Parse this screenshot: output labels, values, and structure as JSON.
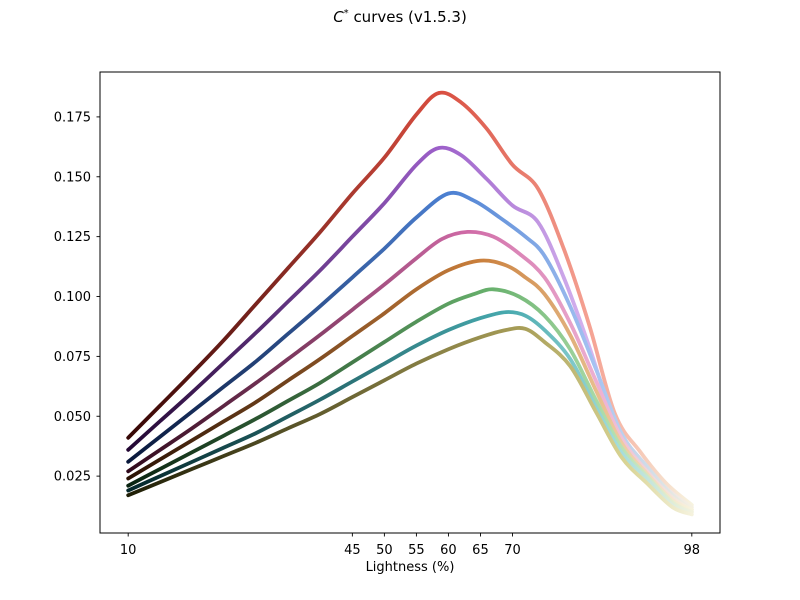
{
  "title": {
    "var": "C",
    "sup": "*",
    "rest": " curves (v1.5.3)"
  },
  "chart_data": {
    "type": "line",
    "title": "C* curves (v1.5.3)",
    "xlabel": "Lightness (%)",
    "ylabel": "",
    "xlim": [
      5.6,
      102.4
    ],
    "ylim": [
      0.00125,
      0.19375
    ],
    "x_ticks": [
      10,
      45,
      50,
      55,
      60,
      65,
      70,
      98
    ],
    "x_tick_labels": [
      "10",
      "45",
      "50",
      "55",
      "60",
      "65",
      "70",
      "98"
    ],
    "y_ticks": [
      0.025,
      0.05,
      0.075,
      0.1,
      0.125,
      0.15,
      0.175
    ],
    "y_tick_labels": [
      "0.025",
      "0.050",
      "0.075",
      "0.100",
      "0.125",
      "0.150",
      "0.175"
    ],
    "grid": false,
    "legend": "none",
    "frame_color": "#000000",
    "background": "#ffffff",
    "line_width": 3.8,
    "series": [
      {
        "name": "red",
        "peak": {
          "x": 58.5,
          "y": 0.185
        },
        "gradient": [
          {
            "offset": 0.0,
            "color": "#350605"
          },
          {
            "offset": 0.55,
            "color": "#d84d3f"
          },
          {
            "offset": 0.82,
            "color": "#f5a293"
          },
          {
            "offset": 1.0,
            "color": "#f7f3df"
          }
        ],
        "points": [
          [
            10,
            0.041
          ],
          [
            15,
            0.0545
          ],
          [
            20,
            0.068
          ],
          [
            25,
            0.082
          ],
          [
            30,
            0.097
          ],
          [
            35,
            0.112
          ],
          [
            40,
            0.127
          ],
          [
            45,
            0.143
          ],
          [
            50,
            0.158
          ],
          [
            55,
            0.176
          ],
          [
            58.5,
            0.185
          ],
          [
            62,
            0.181
          ],
          [
            66,
            0.17
          ],
          [
            70,
            0.155
          ],
          [
            74,
            0.145
          ],
          [
            78,
            0.12
          ],
          [
            82,
            0.088
          ],
          [
            86,
            0.051
          ],
          [
            90,
            0.035
          ],
          [
            94,
            0.022
          ],
          [
            98,
            0.013
          ]
        ]
      },
      {
        "name": "purple",
        "peak": {
          "x": 58.5,
          "y": 0.162
        },
        "gradient": [
          {
            "offset": 0.0,
            "color": "#230733"
          },
          {
            "offset": 0.55,
            "color": "#9c5fc9"
          },
          {
            "offset": 0.82,
            "color": "#d5b4ef"
          },
          {
            "offset": 1.0,
            "color": "#f5f1e2"
          }
        ],
        "points": [
          [
            10,
            0.036
          ],
          [
            15,
            0.048
          ],
          [
            20,
            0.06
          ],
          [
            25,
            0.0725
          ],
          [
            30,
            0.085
          ],
          [
            35,
            0.098
          ],
          [
            40,
            0.111
          ],
          [
            45,
            0.125
          ],
          [
            50,
            0.139
          ],
          [
            55,
            0.155
          ],
          [
            58.5,
            0.162
          ],
          [
            62,
            0.159
          ],
          [
            66,
            0.149
          ],
          [
            70,
            0.138
          ],
          [
            74,
            0.131
          ],
          [
            78,
            0.108
          ],
          [
            82,
            0.079
          ],
          [
            86,
            0.047
          ],
          [
            90,
            0.032
          ],
          [
            94,
            0.02
          ],
          [
            98,
            0.012
          ]
        ]
      },
      {
        "name": "blue",
        "peak": {
          "x": 60,
          "y": 0.143
        },
        "gradient": [
          {
            "offset": 0.0,
            "color": "#08173a"
          },
          {
            "offset": 0.57,
            "color": "#4c80d2"
          },
          {
            "offset": 0.83,
            "color": "#a6c3f2"
          },
          {
            "offset": 1.0,
            "color": "#f3f1e0"
          }
        ],
        "points": [
          [
            10,
            0.031
          ],
          [
            15,
            0.0415
          ],
          [
            20,
            0.052
          ],
          [
            25,
            0.0625
          ],
          [
            30,
            0.073
          ],
          [
            35,
            0.0845
          ],
          [
            40,
            0.096
          ],
          [
            45,
            0.108
          ],
          [
            50,
            0.12
          ],
          [
            55,
            0.133
          ],
          [
            60,
            0.143
          ],
          [
            64,
            0.14
          ],
          [
            68,
            0.133
          ],
          [
            72,
            0.125
          ],
          [
            75,
            0.117
          ],
          [
            79,
            0.096
          ],
          [
            83,
            0.07
          ],
          [
            87,
            0.043
          ],
          [
            91,
            0.029
          ],
          [
            95,
            0.017
          ],
          [
            98,
            0.011
          ]
        ]
      },
      {
        "name": "pink",
        "peak": {
          "x": 63,
          "y": 0.127
        },
        "gradient": [
          {
            "offset": 0.0,
            "color": "#300a1c"
          },
          {
            "offset": 0.6,
            "color": "#cf6aa6"
          },
          {
            "offset": 0.84,
            "color": "#eeb2d3"
          },
          {
            "offset": 1.0,
            "color": "#f6f2e0"
          }
        ],
        "points": [
          [
            10,
            0.027
          ],
          [
            15,
            0.036
          ],
          [
            20,
            0.045
          ],
          [
            25,
            0.0545
          ],
          [
            30,
            0.064
          ],
          [
            35,
            0.074
          ],
          [
            40,
            0.084
          ],
          [
            45,
            0.0945
          ],
          [
            50,
            0.105
          ],
          [
            55,
            0.116
          ],
          [
            59,
            0.124
          ],
          [
            63,
            0.127
          ],
          [
            67,
            0.125
          ],
          [
            71,
            0.118
          ],
          [
            75,
            0.108
          ],
          [
            79,
            0.089
          ],
          [
            83,
            0.065
          ],
          [
            87,
            0.041
          ],
          [
            91,
            0.027
          ],
          [
            95,
            0.016
          ],
          [
            98,
            0.011
          ]
        ]
      },
      {
        "name": "orange",
        "peak": {
          "x": 65,
          "y": 0.115
        },
        "gradient": [
          {
            "offset": 0.0,
            "color": "#2a1204"
          },
          {
            "offset": 0.62,
            "color": "#c97e3b"
          },
          {
            "offset": 0.85,
            "color": "#eac394"
          },
          {
            "offset": 1.0,
            "color": "#f7f3de"
          }
        ],
        "points": [
          [
            10,
            0.024
          ],
          [
            15,
            0.032
          ],
          [
            20,
            0.04
          ],
          [
            25,
            0.048
          ],
          [
            30,
            0.056
          ],
          [
            35,
            0.065
          ],
          [
            40,
            0.074
          ],
          [
            45,
            0.0835
          ],
          [
            50,
            0.093
          ],
          [
            55,
            0.103
          ],
          [
            60,
            0.111
          ],
          [
            65,
            0.115
          ],
          [
            69,
            0.113
          ],
          [
            72,
            0.108
          ],
          [
            75,
            0.101
          ],
          [
            79,
            0.084
          ],
          [
            83,
            0.061
          ],
          [
            87,
            0.039
          ],
          [
            91,
            0.026
          ],
          [
            95,
            0.015
          ],
          [
            98,
            0.011
          ]
        ]
      },
      {
        "name": "green",
        "peak": {
          "x": 67,
          "y": 0.103
        },
        "gradient": [
          {
            "offset": 0.0,
            "color": "#092310"
          },
          {
            "offset": 0.64,
            "color": "#67b06c"
          },
          {
            "offset": 0.86,
            "color": "#b2dfad"
          },
          {
            "offset": 1.0,
            "color": "#f3f2dd"
          }
        ],
        "points": [
          [
            10,
            0.021
          ],
          [
            15,
            0.028
          ],
          [
            20,
            0.035
          ],
          [
            25,
            0.042
          ],
          [
            30,
            0.049
          ],
          [
            35,
            0.0565
          ],
          [
            40,
            0.064
          ],
          [
            45,
            0.0725
          ],
          [
            50,
            0.081
          ],
          [
            55,
            0.0895
          ],
          [
            60,
            0.097
          ],
          [
            64,
            0.101
          ],
          [
            67,
            0.103
          ],
          [
            71,
            0.1
          ],
          [
            75,
            0.092
          ],
          [
            79,
            0.078
          ],
          [
            83,
            0.057
          ],
          [
            87,
            0.037
          ],
          [
            91,
            0.025
          ],
          [
            95,
            0.014
          ],
          [
            98,
            0.01
          ]
        ]
      },
      {
        "name": "teal",
        "peak": {
          "x": 69,
          "y": 0.0935
        },
        "gradient": [
          {
            "offset": 0.0,
            "color": "#05272a"
          },
          {
            "offset": 0.67,
            "color": "#47a9ae"
          },
          {
            "offset": 0.87,
            "color": "#a3dcdb"
          },
          {
            "offset": 1.0,
            "color": "#f2f2de"
          }
        ],
        "points": [
          [
            10,
            0.019
          ],
          [
            15,
            0.025
          ],
          [
            20,
            0.031
          ],
          [
            25,
            0.037
          ],
          [
            30,
            0.043
          ],
          [
            35,
            0.05
          ],
          [
            40,
            0.057
          ],
          [
            45,
            0.0645
          ],
          [
            50,
            0.072
          ],
          [
            55,
            0.0795
          ],
          [
            60,
            0.086
          ],
          [
            65,
            0.091
          ],
          [
            69,
            0.0935
          ],
          [
            72,
            0.092
          ],
          [
            75,
            0.086
          ],
          [
            79,
            0.074
          ],
          [
            83,
            0.054
          ],
          [
            87,
            0.035
          ],
          [
            91,
            0.024
          ],
          [
            95,
            0.013
          ],
          [
            98,
            0.01
          ]
        ]
      },
      {
        "name": "olive",
        "peak": {
          "x": 71,
          "y": 0.087
        },
        "gradient": [
          {
            "offset": 0.0,
            "color": "#1f1e06"
          },
          {
            "offset": 0.7,
            "color": "#a89e58"
          },
          {
            "offset": 0.88,
            "color": "#d8d392"
          },
          {
            "offset": 1.0,
            "color": "#f5f2dd"
          }
        ],
        "points": [
          [
            10,
            0.017
          ],
          [
            15,
            0.0225
          ],
          [
            20,
            0.028
          ],
          [
            25,
            0.0335
          ],
          [
            30,
            0.039
          ],
          [
            35,
            0.045
          ],
          [
            40,
            0.051
          ],
          [
            45,
            0.058
          ],
          [
            50,
            0.065
          ],
          [
            55,
            0.072
          ],
          [
            60,
            0.078
          ],
          [
            65,
            0.083
          ],
          [
            69,
            0.086
          ],
          [
            72,
            0.0865
          ],
          [
            75,
            0.081
          ],
          [
            79,
            0.071
          ],
          [
            83,
            0.052
          ],
          [
            87,
            0.033
          ],
          [
            91,
            0.022
          ],
          [
            95,
            0.012
          ],
          [
            98,
            0.009
          ]
        ]
      }
    ]
  }
}
